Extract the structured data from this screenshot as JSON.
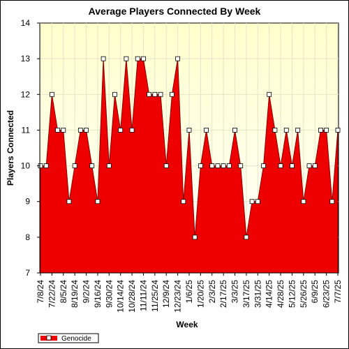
{
  "chart_data": {
    "type": "area",
    "title": "Average Players Connected By Week",
    "xlabel": "Week",
    "ylabel": "Players Connected",
    "ylim": [
      7,
      14
    ],
    "yticks": [
      7,
      8,
      9,
      10,
      11,
      12,
      13,
      14
    ],
    "grid": true,
    "legend": "bottom-left",
    "colors": {
      "fill": "#ee0000",
      "plot_bg_top": "#ffffcc",
      "plot_bg_bottom": "#ffffff",
      "grid": "#e4e4c8",
      "marker": "#ffffff"
    },
    "x_tick_labels": [
      "7/8/24",
      "7/22/24",
      "8/5/24",
      "8/19/24",
      "9/2/24",
      "9/16/24",
      "9/30/24",
      "10/14/24",
      "10/28/24",
      "11/11/24",
      "11/25/24",
      "12/9/24",
      "12/23/24",
      "1/6/25",
      "1/20/25",
      "2/3/25",
      "2/17/25",
      "3/3/25",
      "3/17/25",
      "3/31/25",
      "4/14/25",
      "4/28/25",
      "5/12/25",
      "5/26/25",
      "6/9/25",
      "6/23/25",
      "7/7/25"
    ],
    "series": [
      {
        "name": "Genocide",
        "values": [
          10,
          10,
          12,
          11,
          11,
          9,
          10,
          11,
          11,
          10,
          9,
          13,
          10,
          12,
          11,
          13,
          11,
          13,
          13,
          12,
          12,
          12,
          10,
          12,
          13,
          9,
          11,
          8,
          10,
          11,
          10,
          10,
          10,
          10,
          11,
          10,
          8,
          9,
          9,
          10,
          12,
          11,
          10,
          11,
          10,
          11,
          9,
          10,
          10,
          11,
          11,
          9,
          11
        ]
      }
    ]
  }
}
